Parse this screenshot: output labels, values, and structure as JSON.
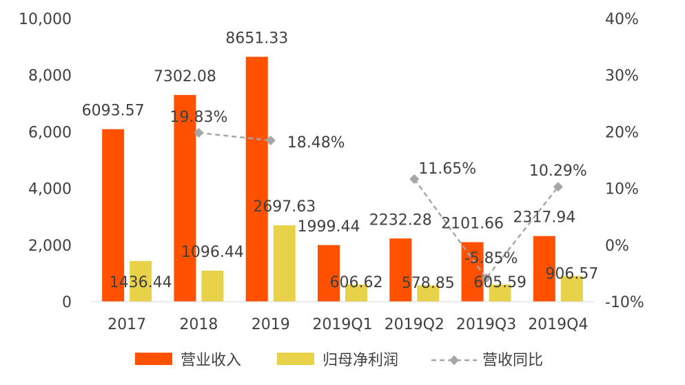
{
  "chart_data": {
    "type": "bar",
    "categories": [
      "2017",
      "2018",
      "2019",
      "2019Q1",
      "2019Q2",
      "2019Q3",
      "2019Q4"
    ],
    "series": [
      {
        "name": "营业收入",
        "type": "bar",
        "axis": "left",
        "color": "#FF5100",
        "values": [
          6093.57,
          7302.08,
          8651.33,
          1999.44,
          2232.28,
          2101.66,
          2317.94
        ],
        "labels": [
          "6093.57",
          "7302.08",
          "8651.33",
          "1999.44",
          "2232.28",
          "2101.66",
          "2317.94"
        ]
      },
      {
        "name": "归母净利润",
        "type": "bar",
        "axis": "left",
        "color": "#E8D24A",
        "values": [
          1436.44,
          1096.44,
          2697.63,
          606.62,
          578.85,
          605.59,
          906.57
        ],
        "labels": [
          "1436.44",
          "1096.44",
          "2697.63",
          "606.62",
          "578.85",
          "605.59",
          "906.57"
        ]
      },
      {
        "name": "营收同比",
        "type": "line",
        "axis": "right",
        "color": "#A6A6A6",
        "values": [
          null,
          19.83,
          18.48,
          null,
          11.65,
          -5.85,
          10.29
        ],
        "labels": [
          "",
          "19.83%",
          "18.48%",
          "",
          "11.65%",
          "-5.85%",
          "10.29%"
        ]
      }
    ],
    "left_axis": {
      "min": 0,
      "max": 10000,
      "ticks": [
        "0",
        "2,000",
        "4,000",
        "6,000",
        "8,000",
        "10,000"
      ]
    },
    "right_axis": {
      "min": -10,
      "max": 40,
      "ticks": [
        "-10%",
        "0%",
        "10%",
        "20%",
        "30%",
        "40%"
      ]
    },
    "legend": {
      "position": "bottom",
      "items": [
        "营业收入",
        "归母净利润",
        "营收同比"
      ]
    },
    "title": "",
    "xlabel": "",
    "ylabel": ""
  }
}
